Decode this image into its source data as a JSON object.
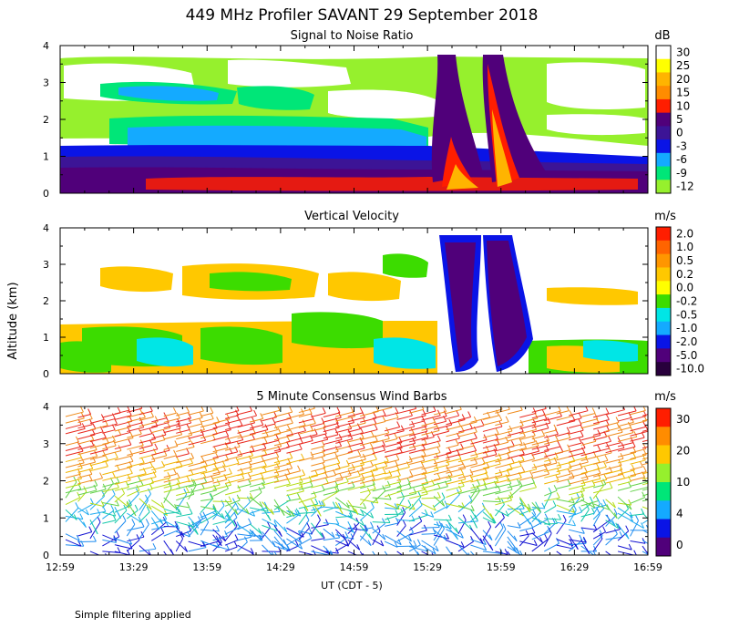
{
  "figure": {
    "title": "449 MHz Profiler SAVANT 29 September 2018",
    "footnote": "Simple filtering applied",
    "y_axis_label": "Altitude (km)",
    "x_axis_label": "UT  (CDT - 5)",
    "time_ticks": [
      "12:59",
      "13:29",
      "13:59",
      "14:29",
      "14:59",
      "15:29",
      "15:59",
      "16:29",
      "16:59"
    ],
    "altitude_ticks": [
      "0",
      "1",
      "2",
      "3",
      "4"
    ]
  },
  "chart_data": [
    {
      "type": "heatmap",
      "title": "Signal to Noise Ratio",
      "x_range": [
        "12:59",
        "16:59"
      ],
      "ylim": [
        0,
        4
      ],
      "colorbar": {
        "unit": "dB",
        "labels": [
          "30",
          "25",
          "20",
          "15",
          "10",
          "5",
          "0",
          "-3",
          "-6",
          "-9",
          "-12"
        ],
        "colors": [
          "#ffffff",
          "#ffff00",
          "#ffb400",
          "#ff8c00",
          "#ff1e00",
          "#50007a",
          "#3c1496",
          "#0a14e6",
          "#14aaff",
          "#00e678",
          "#96f02d"
        ]
      }
    },
    {
      "type": "heatmap",
      "title": "Vertical Velocity",
      "x_range": [
        "12:59",
        "16:59"
      ],
      "ylim": [
        0,
        4
      ],
      "colorbar": {
        "unit": "m/s",
        "labels": [
          "2.0",
          "1.0",
          "0.5",
          "0.2",
          "0.0",
          "-0.2",
          "-0.5",
          "-1.0",
          "-2.0",
          "-5.0",
          "-10.0"
        ],
        "colors": [
          "#ff1e00",
          "#ff6400",
          "#ff9600",
          "#ffc800",
          "#ffff00",
          "#3cdc00",
          "#00e6e6",
          "#14aaff",
          "#0a14e6",
          "#50007a",
          "#28003c"
        ]
      }
    },
    {
      "type": "scatter",
      "title": "5 Minute Consensus Wind Barbs",
      "x_range": [
        "12:59",
        "16:59"
      ],
      "ylim": [
        0,
        4
      ],
      "colorbar": {
        "unit": "m/s",
        "labels": [
          "30",
          "20",
          "10",
          "4",
          "0"
        ],
        "colors": [
          "#ff1e00",
          "#ff8c00",
          "#ffc800",
          "#96f02d",
          "#00e678",
          "#14aaff",
          "#0a14e6",
          "#50007a"
        ]
      }
    }
  ]
}
